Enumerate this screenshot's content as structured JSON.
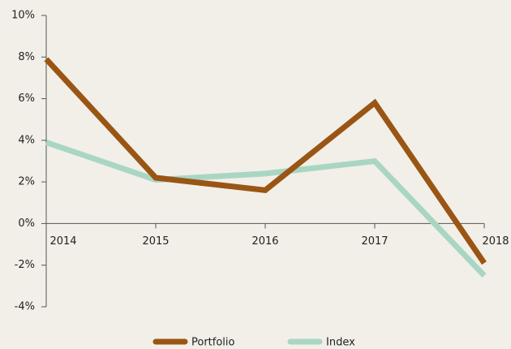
{
  "chart_data": {
    "type": "line",
    "categories": [
      "2014",
      "2015",
      "2016",
      "2017",
      "2018"
    ],
    "series": [
      {
        "name": "Portfolio",
        "color": "#9a5514",
        "values": [
          7.9,
          2.2,
          1.6,
          5.8,
          -1.9
        ]
      },
      {
        "name": "Index",
        "color": "#a9d6c3",
        "values": [
          3.9,
          2.1,
          2.4,
          3.0,
          -2.5
        ]
      }
    ],
    "ylim": [
      -4,
      10
    ],
    "yticks": [
      {
        "value": -4,
        "label": "-4%"
      },
      {
        "value": -2,
        "label": "-2%"
      },
      {
        "value": 0,
        "label": "0%"
      },
      {
        "value": 2,
        "label": "2%"
      },
      {
        "value": 4,
        "label": "4%"
      },
      {
        "value": 6,
        "label": "6%"
      },
      {
        "value": 8,
        "label": "8%"
      },
      {
        "value": 10,
        "label": "10%"
      }
    ],
    "legend": "bottom"
  }
}
